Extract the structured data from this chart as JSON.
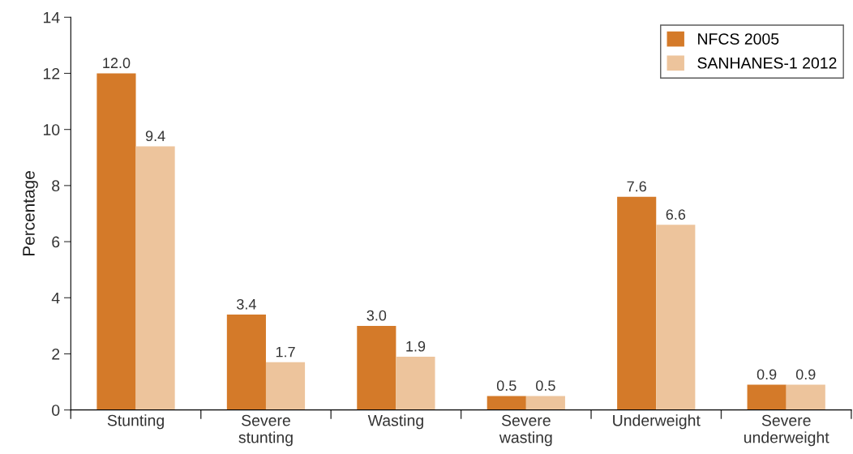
{
  "chart_data": {
    "type": "bar",
    "ylabel": "Percentage",
    "categories": [
      "Stunting",
      "Severe stunting",
      "Wasting",
      "Severe wasting",
      "Underweight",
      "Severe underweight"
    ],
    "series": [
      {
        "name": "NFCS 2005",
        "color": "#d47a29",
        "values": [
          12.0,
          3.4,
          3.0,
          0.5,
          7.6,
          0.9
        ],
        "value_labels": [
          "12.0",
          "3.4",
          "3.0",
          "0.5",
          "7.6",
          "0.9"
        ]
      },
      {
        "name": "SANHANES-1 2012",
        "color": "#edc49c",
        "values": [
          9.4,
          1.7,
          1.9,
          0.5,
          6.6,
          0.9
        ],
        "value_labels": [
          "9.4",
          "1.7",
          "1.9",
          "0.5",
          "6.6",
          "0.9"
        ]
      }
    ],
    "ylim": [
      0,
      14
    ],
    "yticks": [
      0,
      2,
      4,
      6,
      8,
      10,
      12,
      14
    ],
    "legend": "top right",
    "grid": false
  }
}
